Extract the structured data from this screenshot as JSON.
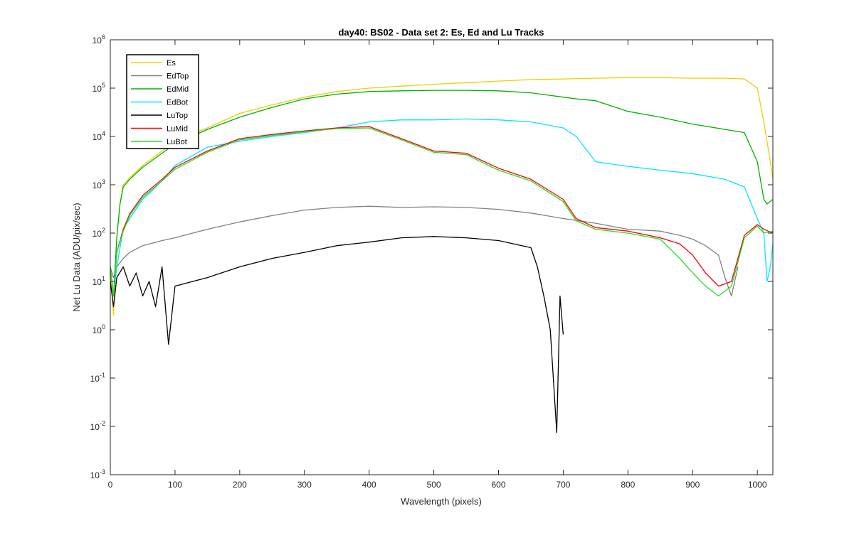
{
  "chart_data": {
    "type": "line",
    "title": "day40: BS02 - Data set 2: Es, Ed and Lu Tracks",
    "xlabel": "Wavelength (pixels)",
    "ylabel": "Net Lu Data (ADU/pix/sec)",
    "xlim": [
      0,
      1024
    ],
    "ylim": [
      0.001,
      1000000
    ],
    "yscale": "log",
    "grid": false,
    "legend_position": "top-left",
    "x_ticks": [
      0,
      100,
      200,
      300,
      400,
      500,
      600,
      700,
      800,
      900,
      1000
    ],
    "x_tick_labels": [
      "0",
      "100",
      "200",
      "300",
      "400",
      "500",
      "600",
      "700",
      "800",
      "900",
      "1000"
    ],
    "y_ticks": [
      0.001,
      0.01,
      0.1,
      1,
      10,
      100,
      1000,
      10000,
      100000,
      1000000
    ],
    "y_tick_labels": [
      {
        "base": "10",
        "exp": "-3"
      },
      {
        "base": "10",
        "exp": "-2"
      },
      {
        "base": "10",
        "exp": "-1"
      },
      {
        "base": "10",
        "exp": "0"
      },
      {
        "base": "10",
        "exp": "1"
      },
      {
        "base": "10",
        "exp": "2"
      },
      {
        "base": "10",
        "exp": "3"
      },
      {
        "base": "10",
        "exp": "4"
      },
      {
        "base": "10",
        "exp": "5"
      },
      {
        "base": "10",
        "exp": "6"
      }
    ],
    "series": [
      {
        "name": "Es",
        "color": "#e6d200",
        "x": [
          0,
          5,
          10,
          15,
          20,
          30,
          50,
          80,
          100,
          150,
          200,
          250,
          300,
          350,
          400,
          450,
          500,
          550,
          600,
          650,
          700,
          750,
          800,
          850,
          900,
          950,
          980,
          1000,
          1010,
          1020,
          1024
        ],
        "y": [
          20,
          2,
          80,
          400,
          1000,
          1400,
          2500,
          5000,
          8000,
          15000,
          30000,
          45000,
          65000,
          85000,
          100000,
          110000,
          120000,
          130000,
          140000,
          150000,
          155000,
          160000,
          165000,
          165000,
          160000,
          160000,
          155000,
          100000,
          20000,
          3000,
          1300
        ]
      },
      {
        "name": "EdTop",
        "color": "#808080",
        "x": [
          0,
          5,
          10,
          20,
          30,
          50,
          80,
          100,
          150,
          200,
          250,
          300,
          350,
          400,
          450,
          500,
          550,
          600,
          650,
          700,
          750,
          800,
          850,
          880,
          900,
          920,
          940,
          950,
          960,
          970
        ],
        "y": [
          20,
          12,
          20,
          30,
          40,
          55,
          70,
          80,
          120,
          170,
          230,
          300,
          340,
          360,
          340,
          350,
          340,
          310,
          260,
          200,
          160,
          120,
          110,
          90,
          75,
          55,
          35,
          12,
          5,
          20
        ]
      },
      {
        "name": "EdMid",
        "color": "#00b000",
        "x": [
          0,
          5,
          10,
          15,
          20,
          30,
          50,
          80,
          100,
          150,
          200,
          250,
          300,
          350,
          400,
          450,
          500,
          550,
          600,
          650,
          700,
          720,
          750,
          800,
          850,
          900,
          950,
          980,
          1000,
          1010,
          1015,
          1024
        ],
        "y": [
          20,
          5,
          80,
          400,
          900,
          1300,
          2300,
          4500,
          7000,
          14000,
          25000,
          40000,
          60000,
          75000,
          85000,
          88000,
          90000,
          90000,
          88000,
          80000,
          65000,
          60000,
          55000,
          33000,
          25000,
          18000,
          14000,
          12000,
          3000,
          500,
          400,
          500
        ]
      },
      {
        "name": "EdBot",
        "color": "#00e5ff",
        "x": [
          0,
          5,
          10,
          15,
          20,
          30,
          50,
          80,
          100,
          150,
          200,
          250,
          300,
          350,
          400,
          450,
          500,
          550,
          600,
          650,
          700,
          720,
          750,
          800,
          850,
          900,
          950,
          980,
          1000,
          1010,
          1015,
          1020,
          1024
        ],
        "y": [
          20,
          5,
          20,
          50,
          120,
          200,
          500,
          1200,
          2500,
          6000,
          8000,
          10000,
          12000,
          15000,
          20000,
          22000,
          22000,
          23000,
          22000,
          20000,
          15000,
          10000,
          3000,
          2400,
          2000,
          1700,
          1300,
          900,
          200,
          100,
          10,
          20,
          60
        ]
      },
      {
        "name": "LuTop",
        "color": "#000000",
        "x": [
          0,
          5,
          10,
          20,
          30,
          40,
          50,
          60,
          70,
          80,
          90,
          100,
          150,
          200,
          250,
          300,
          350,
          400,
          450,
          500,
          550,
          600,
          650,
          660,
          670,
          680,
          690,
          695,
          700
        ],
        "y": [
          10,
          3,
          12,
          20,
          8,
          15,
          5,
          10,
          3,
          20,
          0.5,
          8,
          12,
          20,
          30,
          40,
          55,
          65,
          80,
          85,
          80,
          70,
          50,
          20,
          5,
          1,
          0.0075,
          5,
          0.8
        ]
      },
      {
        "name": "LuMid",
        "color": "#ff0000",
        "x": [
          0,
          5,
          10,
          20,
          30,
          50,
          80,
          100,
          150,
          200,
          250,
          300,
          350,
          400,
          450,
          500,
          550,
          600,
          650,
          700,
          720,
          750,
          800,
          850,
          880,
          900,
          920,
          940,
          960,
          980,
          1000,
          1010,
          1024
        ],
        "y": [
          20,
          5,
          40,
          120,
          250,
          600,
          1300,
          2300,
          5000,
          9000,
          11000,
          13000,
          15000,
          16000,
          9000,
          5000,
          4500,
          2200,
          1300,
          500,
          200,
          130,
          110,
          80,
          60,
          35,
          15,
          8,
          10,
          90,
          150,
          120,
          100
        ]
      },
      {
        "name": "LuBot",
        "color": "#22dd22",
        "x": [
          0,
          5,
          10,
          20,
          30,
          50,
          80,
          100,
          150,
          200,
          250,
          300,
          350,
          400,
          450,
          500,
          550,
          600,
          650,
          700,
          720,
          750,
          800,
          850,
          880,
          900,
          920,
          940,
          960,
          980,
          1000,
          1010,
          1024
        ],
        "y": [
          20,
          5,
          40,
          110,
          230,
          550,
          1200,
          2100,
          4700,
          8500,
          10500,
          12500,
          14500,
          15000,
          8500,
          4700,
          4200,
          2000,
          1200,
          450,
          180,
          120,
          100,
          75,
          30,
          15,
          8,
          5,
          8,
          80,
          140,
          100,
          110
        ]
      }
    ]
  }
}
